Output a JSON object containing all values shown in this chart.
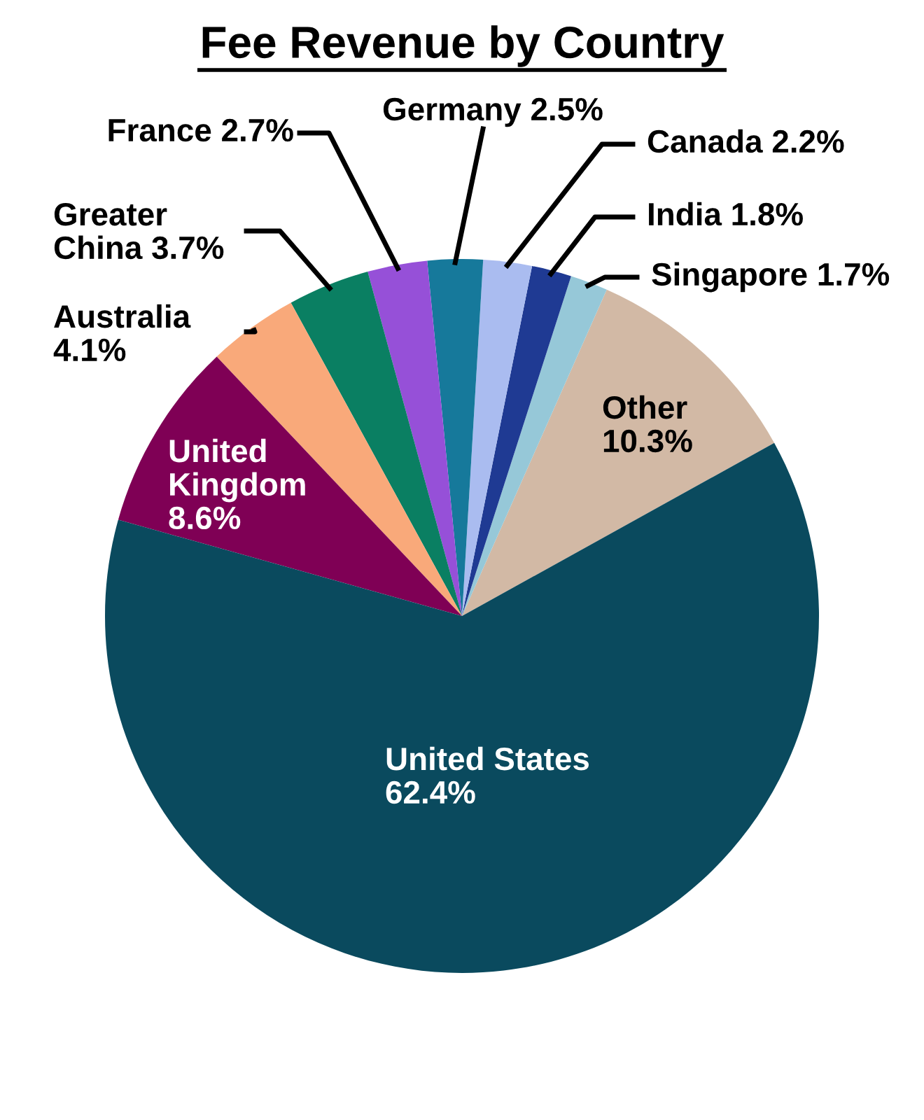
{
  "chart_data": {
    "type": "pie",
    "title": "Fee Revenue by Country",
    "categories": [
      "Other",
      "Singapore",
      "India",
      "Canada",
      "Germany",
      "France",
      "Greater\nChina",
      "Australia",
      "United\nKingdom",
      "United States"
    ],
    "values": [
      10.3,
      1.7,
      1.8,
      2.2,
      2.5,
      2.7,
      3.7,
      4.1,
      8.6,
      62.4
    ],
    "colors": [
      "#d2b9a5",
      "#96c8d8",
      "#1f3a93",
      "#aabcf0",
      "#16799b",
      "#9650d8",
      "#0a7f62",
      "#f9a97a",
      "#7f0055",
      "#0a4a5e"
    ],
    "value_labels": [
      "10.3%",
      "1.7%",
      "1.8%",
      "2.2%",
      "2.5%",
      "2.7%",
      "3.7%",
      "4.1%",
      "8.6%",
      "62.4%"
    ],
    "legend": false
  }
}
